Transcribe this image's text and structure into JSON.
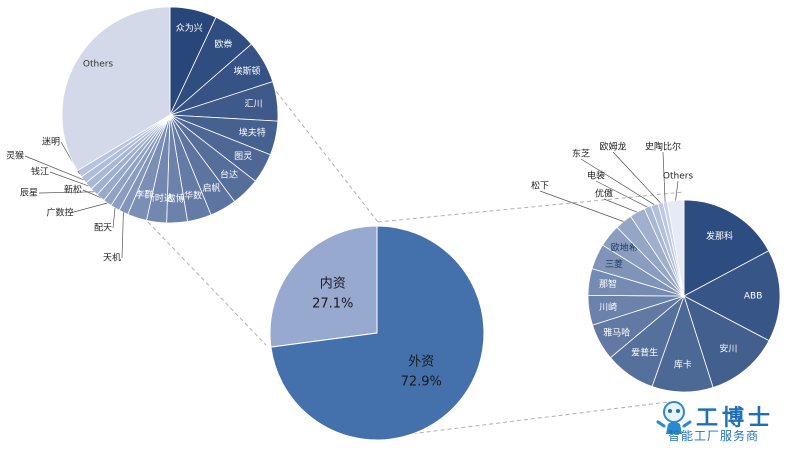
{
  "chart_data": [
    {
      "type": "pie",
      "slices": [
        {
          "label": "内资",
          "value": 27.1,
          "display": "27.1%",
          "color": "#98a9d0"
        },
        {
          "label": "外资",
          "value": 72.9,
          "display": "72.9%",
          "color": "#4471ac"
        }
      ]
    },
    {
      "type": "pie",
      "slices": [
        {
          "label": "众为兴",
          "value": 7.0
        },
        {
          "label": "欧䄅",
          "value": 6.6
        },
        {
          "label": "埃斯顿",
          "value": 6.4
        },
        {
          "label": "汇川",
          "value": 5.9
        },
        {
          "label": "埃夫特",
          "value": 5.1
        },
        {
          "label": "图灵",
          "value": 4.5
        },
        {
          "label": "台达",
          "value": 4.3
        },
        {
          "label": "启帆",
          "value": 4.0
        },
        {
          "label": "华数",
          "value": 3.6
        },
        {
          "label": "遨博",
          "value": 3.1
        },
        {
          "label": "新时达",
          "value": 3.0
        },
        {
          "label": "李群",
          "value": 2.9
        },
        {
          "label": "天机",
          "value": 1.4
        },
        {
          "label": "配天",
          "value": 1.4
        },
        {
          "label": "广数控",
          "value": 1.3
        },
        {
          "label": "新松",
          "value": 1.3
        },
        {
          "label": "辰星",
          "value": 1.2
        },
        {
          "label": "钱江",
          "value": 1.2
        },
        {
          "label": "灵猴",
          "value": 1.1
        },
        {
          "label": "迷明",
          "value": 1.1
        },
        {
          "label": "Others",
          "value": 33.6
        }
      ]
    },
    {
      "type": "pie",
      "slices": [
        {
          "label": "发那科",
          "value": 17.2
        },
        {
          "label": "ABB",
          "value": 15.5
        },
        {
          "label": "安川",
          "value": 12.4
        },
        {
          "label": "库卡",
          "value": 10.3
        },
        {
          "label": "爱普生",
          "value": 8.5
        },
        {
          "label": "雅马哈",
          "value": 6.2
        },
        {
          "label": "川崎",
          "value": 5.0
        },
        {
          "label": "那智",
          "value": 4.5
        },
        {
          "label": "三菱",
          "value": 4.3
        },
        {
          "label": "欧地希",
          "value": 3.8
        },
        {
          "label": "松下",
          "value": 2.9
        },
        {
          "label": "优傲",
          "value": 2.6
        },
        {
          "label": "电装",
          "value": 1.2
        },
        {
          "label": "东芝",
          "value": 1.2
        },
        {
          "label": "欧姆龙",
          "value": 0.9
        },
        {
          "label": "史陶比尔",
          "value": 0.7
        },
        {
          "label": "Others",
          "value": 2.8
        }
      ]
    }
  ],
  "logo": {
    "title": "工博士",
    "subtitle": "智能工厂服务商"
  }
}
